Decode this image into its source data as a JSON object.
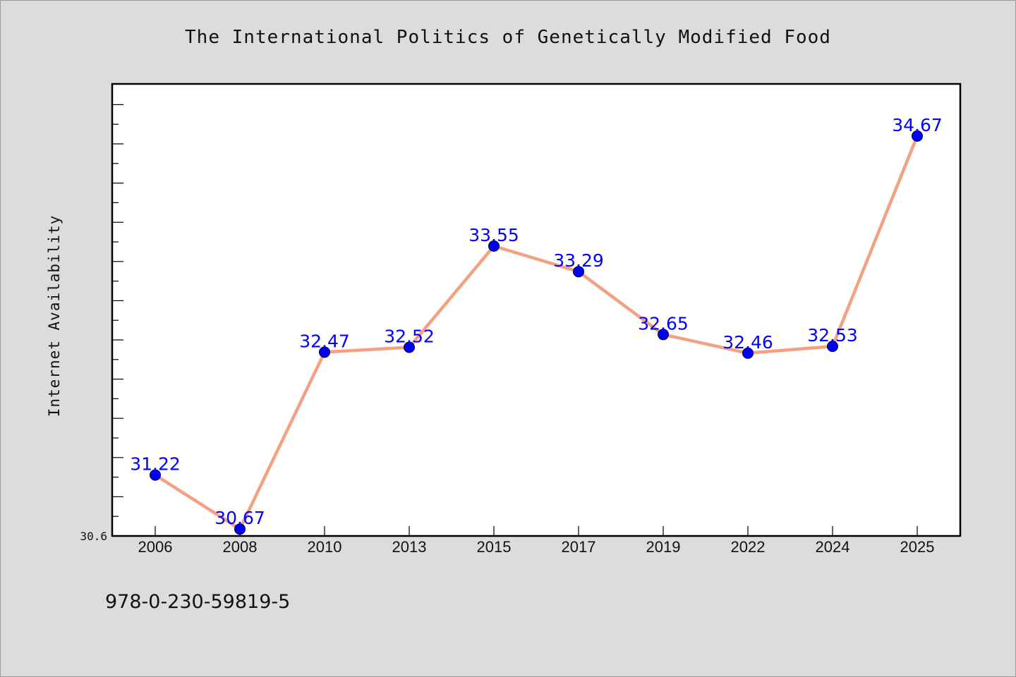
{
  "chart_data": {
    "type": "line",
    "title": "The International Politics of Genetically Modified Food",
    "xlabel": "",
    "ylabel": "Internet Availability",
    "categories": [
      "2006",
      "2008",
      "2010",
      "2013",
      "2015",
      "2017",
      "2019",
      "2022",
      "2024",
      "2025"
    ],
    "values": [
      31.22,
      30.67,
      32.47,
      32.52,
      33.55,
      33.29,
      32.65,
      32.46,
      32.53,
      34.67
    ],
    "data_labels": [
      "31.22",
      "30.67",
      "32.47",
      "32.52",
      "33.55",
      "33.29",
      "32.65",
      "32.46",
      "32.53",
      "34.67"
    ],
    "y_tick_labels": [
      "30.6"
    ],
    "ylim": [
      30.6,
      35.2
    ],
    "grid": false,
    "legend": "none",
    "colors": {
      "line": "#f4a082",
      "marker": "#0000ff",
      "data_label": "#0000ff",
      "plot_background": "#ffffff",
      "page_background": "#dcdcdc"
    }
  },
  "footnote": "978-0-230-59819-5"
}
